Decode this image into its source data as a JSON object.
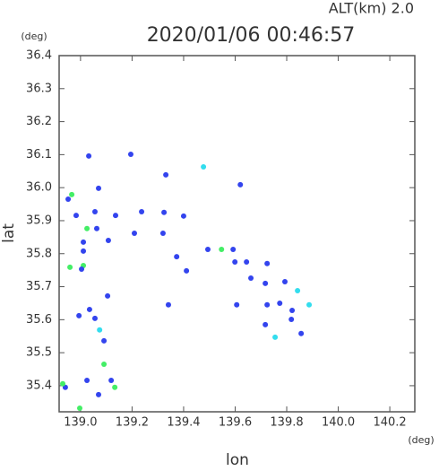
{
  "chart_data": {
    "type": "scatter",
    "title": "2020/01/06 00:46:57",
    "subtitle": "ALT(km) 2.0",
    "x_unit": "(deg)",
    "y_unit": "(deg)",
    "x_label": "lon",
    "y_label": "lat",
    "xlim": [
      138.917,
      140.297
    ],
    "ylim": [
      35.321,
      36.4
    ],
    "xticks": [
      {
        "value": 139,
        "label": "139.0"
      },
      139.2,
      139.4,
      139.6,
      139.8,
      {
        "value": 140,
        "label": "140.0"
      },
      140.2
    ],
    "yticks": [
      35.4,
      35.5,
      35.6,
      35.7,
      35.8,
      35.9,
      {
        "value": 36,
        "label": "36.0"
      },
      36.1,
      36.2,
      36.3,
      36.4
    ],
    "x": [
      139.032,
      138.966,
      138.952,
      138.983,
      139.025,
      139.011,
      139.011,
      139.011,
      139.004,
      138.959,
      139.07,
      139.056,
      139.063,
      139.108,
      139.136,
      139.195,
      139.237,
      139.331,
      139.4,
      139.209,
      139.32,
      139.373,
      139.341,
      139.411,
      139.592,
      139.599,
      139.644,
      139.724,
      139.547,
      139.494,
      139.661,
      139.717,
      139.724,
      139.773,
      139.793,
      139.821,
      139.842,
      139.818,
      139.856,
      139.887,
      139.755,
      139.717,
      139.606,
      139.056,
      139.074,
      139.091,
      138.994,
      139.035,
      139.091,
      139.025,
      138.941,
      138.931,
      139.119,
      139.133,
      139.07,
      138.997,
      139.105,
      139.62,
      139.477,
      139.324
    ],
    "y": [
      36.096,
      35.979,
      35.965,
      35.916,
      35.876,
      35.835,
      35.808,
      35.764,
      35.753,
      35.759,
      35.998,
      35.927,
      35.876,
      35.84,
      35.916,
      36.101,
      35.927,
      36.039,
      35.914,
      35.862,
      35.862,
      35.791,
      35.645,
      35.748,
      35.813,
      35.775,
      35.775,
      35.77,
      35.813,
      35.813,
      35.726,
      35.71,
      35.645,
      35.65,
      35.715,
      35.628,
      35.688,
      35.601,
      35.558,
      35.645,
      35.547,
      35.585,
      35.645,
      35.604,
      35.569,
      35.536,
      35.612,
      35.631,
      35.465,
      35.416,
      35.395,
      35.406,
      35.416,
      35.395,
      35.373,
      35.332,
      35.672,
      36.009,
      36.063,
      35.925
    ],
    "colors": [
      "#3344ee",
      "#44ee66",
      "#3344ee",
      "#3344ee",
      "#44ee66",
      "#3344ee",
      "#3344ee",
      "#44ee66",
      "#3344ee",
      "#44ee66",
      "#3344ee",
      "#3344ee",
      "#3344ee",
      "#3344ee",
      "#3344ee",
      "#3344ee",
      "#3344ee",
      "#3344ee",
      "#3344ee",
      "#3344ee",
      "#3344ee",
      "#3344ee",
      "#3344ee",
      "#3344ee",
      "#3344ee",
      "#3344ee",
      "#3344ee",
      "#3344ee",
      "#44ee66",
      "#3344ee",
      "#3344ee",
      "#3344ee",
      "#3344ee",
      "#3344ee",
      "#3344ee",
      "#3344ee",
      "#33ddee",
      "#3344ee",
      "#3344ee",
      "#33ddee",
      "#33ddee",
      "#3344ee",
      "#3344ee",
      "#3344ee",
      "#33ddee",
      "#3344ee",
      "#3344ee",
      "#3344ee",
      "#44ee66",
      "#3344ee",
      "#3344ee",
      "#44ee66",
      "#3344ee",
      "#44ee66",
      "#3344ee",
      "#44ee66",
      "#3344ee",
      "#3344ee",
      "#33ddee",
      "#3344ee"
    ]
  }
}
